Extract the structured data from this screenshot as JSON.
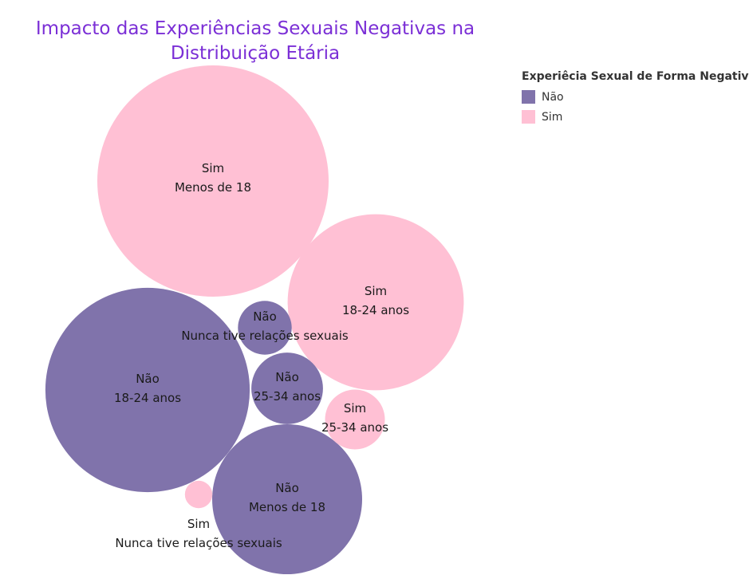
{
  "chart_data": {
    "type": "bubble",
    "title": "Impacto das Experiências Sexuais Negativas na Distribuição Etária",
    "title_lines": [
      "Impacto das Experiências Sexuais Negativas na",
      "Distribuição Etária"
    ],
    "color_field": "Experiêcia Sexual de Forma Negativa",
    "legend_position": "top-right",
    "legend": [
      {
        "label": "Não",
        "color": "#8073ab"
      },
      {
        "label": "Sim",
        "color": "#ffc0d4"
      }
    ],
    "bubbles": [
      {
        "group": "Sim",
        "category": "Menos de 18",
        "value": 100
      },
      {
        "group": "Não",
        "category": "18-24 anos",
        "value": 78
      },
      {
        "group": "Sim",
        "category": "18-24 anos",
        "value": 58
      },
      {
        "group": "Não",
        "category": "Menos de 18",
        "value": 42
      },
      {
        "group": "Não",
        "category": "25-34 anos",
        "value": 9.6
      },
      {
        "group": "Não",
        "category": "Nunca tive relações sexuais",
        "value": 5.4
      },
      {
        "group": "Sim",
        "category": "25-34 anos",
        "value": 6.7
      },
      {
        "group": "Sim",
        "category": "Nunca tive relações sexuais",
        "value": 1.4
      }
    ]
  }
}
